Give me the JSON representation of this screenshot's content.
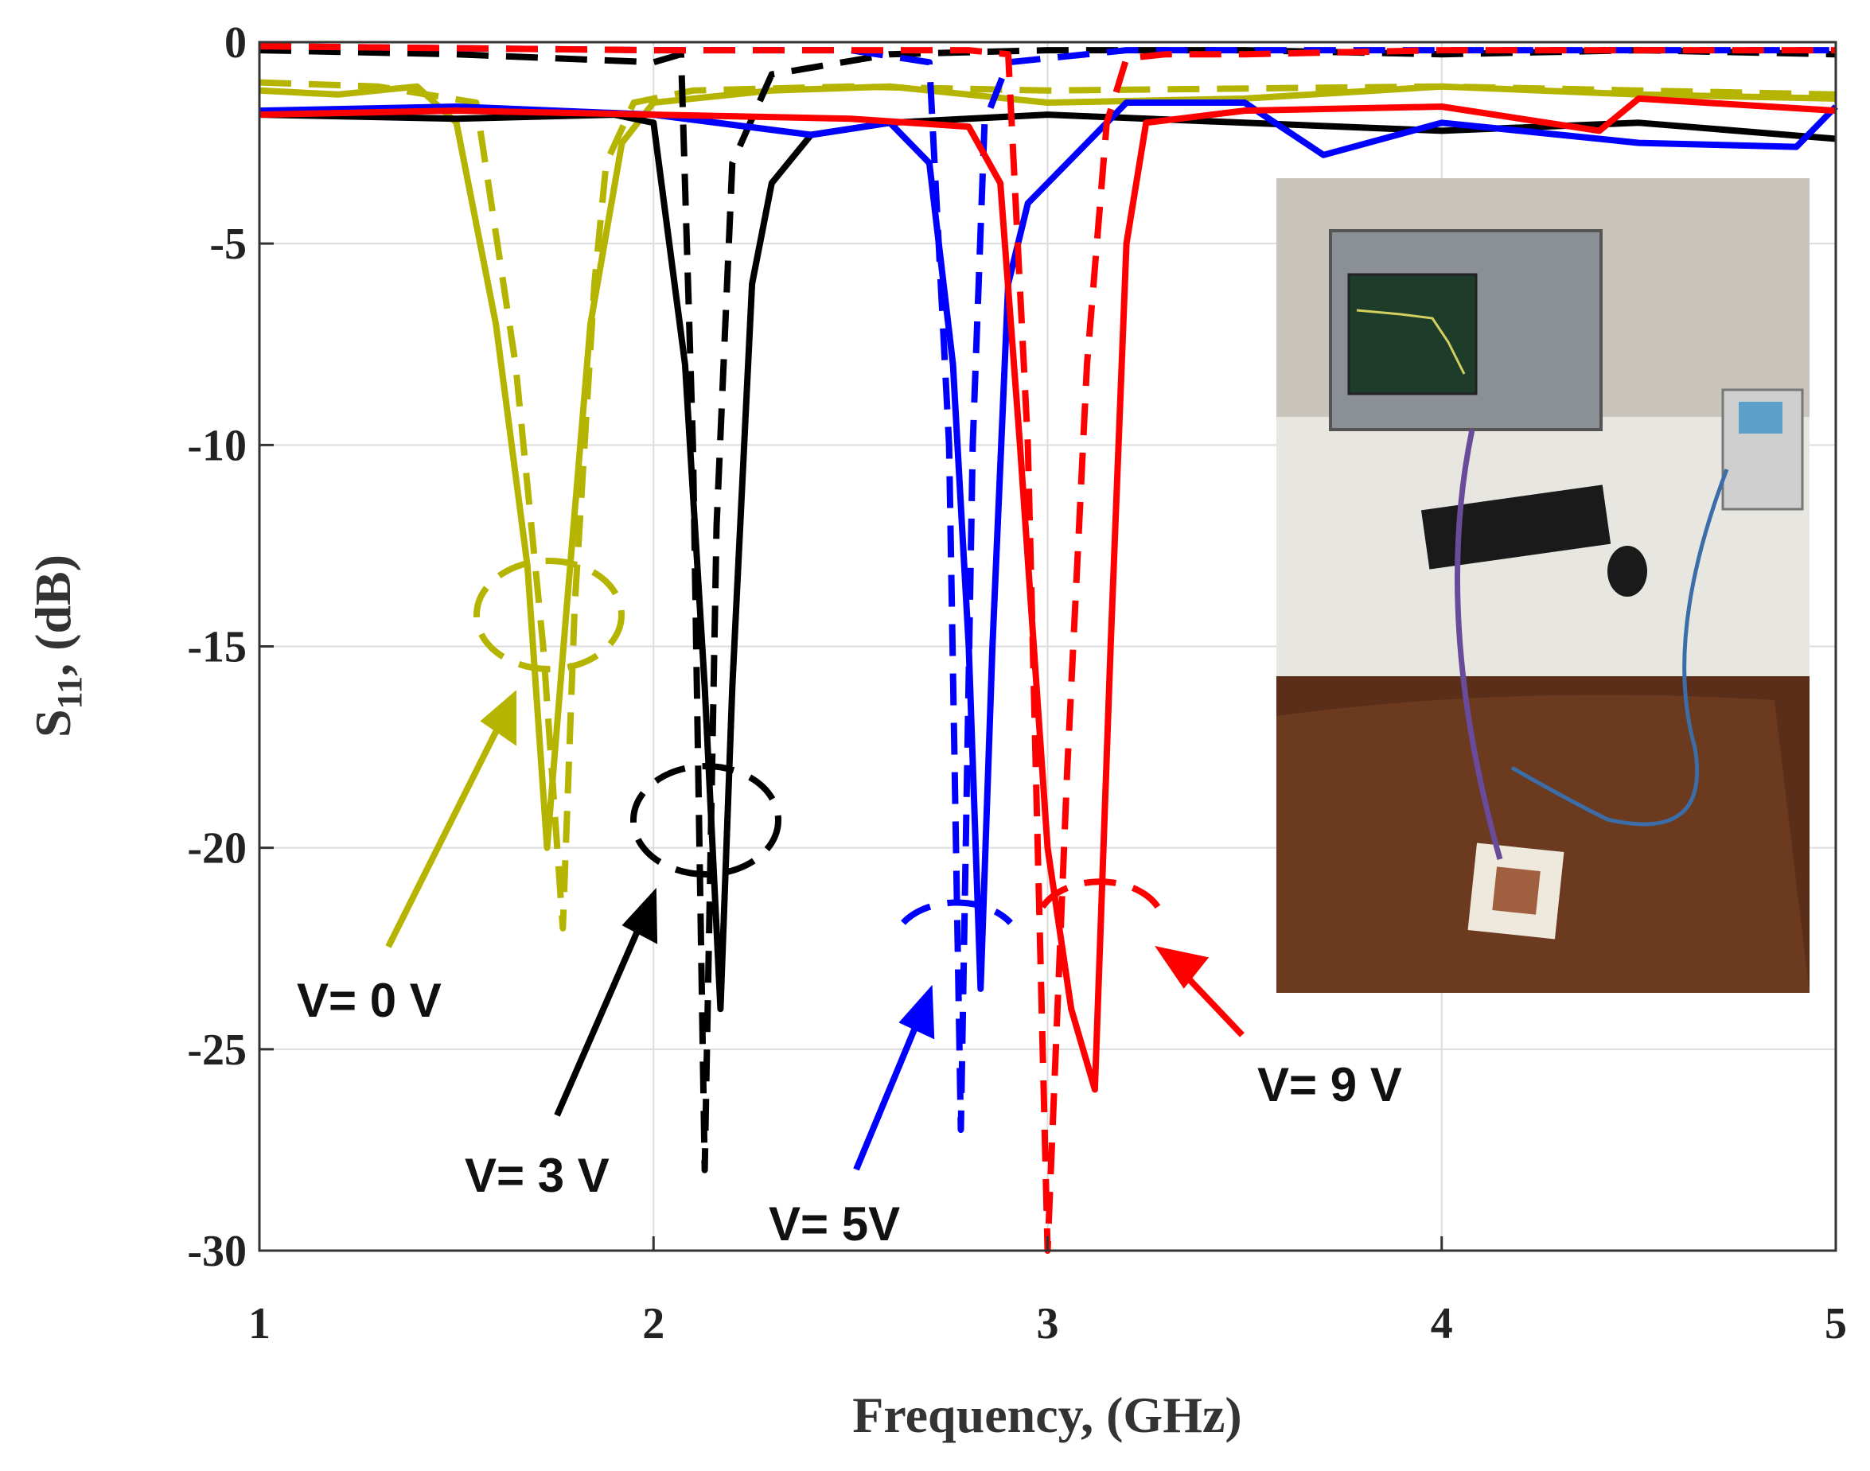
{
  "chart_data": {
    "type": "line",
    "x_label": "Frequency, (GHz)",
    "y_label": {
      "main": "S",
      "sub": "11",
      "rest": ", (dB)"
    },
    "xlim": [
      1,
      5
    ],
    "xticks": [
      1,
      2,
      3,
      4,
      5
    ],
    "ylim": [
      -30,
      0
    ],
    "yticks": [
      0,
      -5,
      -10,
      -15,
      -20,
      -25,
      -30
    ],
    "grid": true,
    "annotations": [
      "V= 0 V",
      "V= 3 V",
      "V= 5V",
      "V= 9 V"
    ],
    "series": [
      {
        "color": "#b5b400",
        "dash": false,
        "x": [
          1,
          1.2,
          1.4,
          1.5,
          1.6,
          1.68,
          1.73,
          1.78,
          1.84,
          1.92,
          2.0,
          2.3,
          2.6,
          3.0,
          3.5,
          4.0,
          4.5,
          5
        ],
        "values": [
          -1.2,
          -1.3,
          -1.1,
          -2,
          -7,
          -13,
          -20,
          -14,
          -7,
          -2.5,
          -1.5,
          -1.2,
          -1.1,
          -1.5,
          -1.4,
          -1.1,
          -1.3,
          -1.4
        ]
      },
      {
        "color": "#b5b400",
        "dash": true,
        "x": [
          1,
          1.3,
          1.55,
          1.65,
          1.72,
          1.77,
          1.8,
          1.85,
          1.88,
          1.95,
          2.1,
          2.5,
          3,
          4,
          5
        ],
        "values": [
          -1,
          -1.1,
          -1.5,
          -8,
          -15,
          -22,
          -14,
          -6,
          -3,
          -1.5,
          -1.2,
          -1.1,
          -1.2,
          -1.1,
          -1.3
        ]
      },
      {
        "color": "#000000",
        "dash": false,
        "x": [
          1,
          1.5,
          1.9,
          2.0,
          2.08,
          2.13,
          2.17,
          2.2,
          2.25,
          2.3,
          2.4,
          2.6,
          3,
          3.5,
          4,
          4.5,
          5
        ],
        "values": [
          -1.8,
          -1.9,
          -1.8,
          -2,
          -8,
          -16,
          -24,
          -16,
          -6,
          -3.5,
          -2.3,
          -2,
          -1.8,
          -2,
          -2.2,
          -2,
          -2.4
        ]
      },
      {
        "color": "#000000",
        "dash": true,
        "x": [
          1,
          1.5,
          2.0,
          2.07,
          2.1,
          2.13,
          2.16,
          2.2,
          2.3,
          2.6,
          3,
          3.5,
          4,
          4.5,
          5
        ],
        "values": [
          -0.2,
          -0.3,
          -0.5,
          -0.3,
          -10,
          -28,
          -12,
          -3,
          -0.8,
          -0.3,
          -0.2,
          -0.2,
          -0.3,
          -0.2,
          -0.3
        ]
      },
      {
        "color": "#0000ff",
        "dash": false,
        "x": [
          1,
          1.5,
          2,
          2.4,
          2.6,
          2.7,
          2.76,
          2.8,
          2.83,
          2.86,
          2.9,
          2.95,
          3.05,
          3.2,
          3.5,
          3.7,
          4,
          4.5,
          4.9,
          5
        ],
        "values": [
          -1.7,
          -1.6,
          -1.8,
          -2.3,
          -2,
          -3,
          -8,
          -15,
          -23.5,
          -15,
          -6,
          -4,
          -3,
          -1.5,
          -1.5,
          -2.8,
          -2,
          -2.5,
          -2.6,
          -1.6
        ]
      },
      {
        "color": "#0000ff",
        "dash": true,
        "x": [
          1,
          2,
          2.5,
          2.7,
          2.75,
          2.78,
          2.81,
          2.84,
          2.9,
          3.2,
          4,
          5
        ],
        "values": [
          -0.1,
          -0.2,
          -0.2,
          -0.5,
          -10,
          -27,
          -10,
          -2,
          -0.5,
          -0.2,
          -0.2,
          -0.2
        ]
      },
      {
        "color": "#ff0000",
        "dash": false,
        "x": [
          1,
          1.5,
          2,
          2.5,
          2.8,
          2.88,
          2.93,
          3.0,
          3.06,
          3.12,
          3.16,
          3.2,
          3.25,
          3.5,
          4,
          4.4,
          4.5,
          5
        ],
        "values": [
          -1.8,
          -1.7,
          -1.8,
          -1.9,
          -2.1,
          -3.5,
          -10,
          -20,
          -24,
          -26,
          -15,
          -5,
          -2,
          -1.7,
          -1.6,
          -2.2,
          -1.4,
          -1.7
        ]
      },
      {
        "color": "#ff0000",
        "dash": true,
        "x": [
          1,
          2,
          2.8,
          2.9,
          2.95,
          3.0,
          3.05,
          3.1,
          3.15,
          3.2,
          3.3,
          3.5,
          4,
          5
        ],
        "values": [
          -0.1,
          -0.2,
          -0.2,
          -0.3,
          -10,
          -30,
          -18,
          -8,
          -2,
          -0.4,
          -0.3,
          -0.3,
          -0.2,
          -0.2
        ]
      }
    ]
  }
}
